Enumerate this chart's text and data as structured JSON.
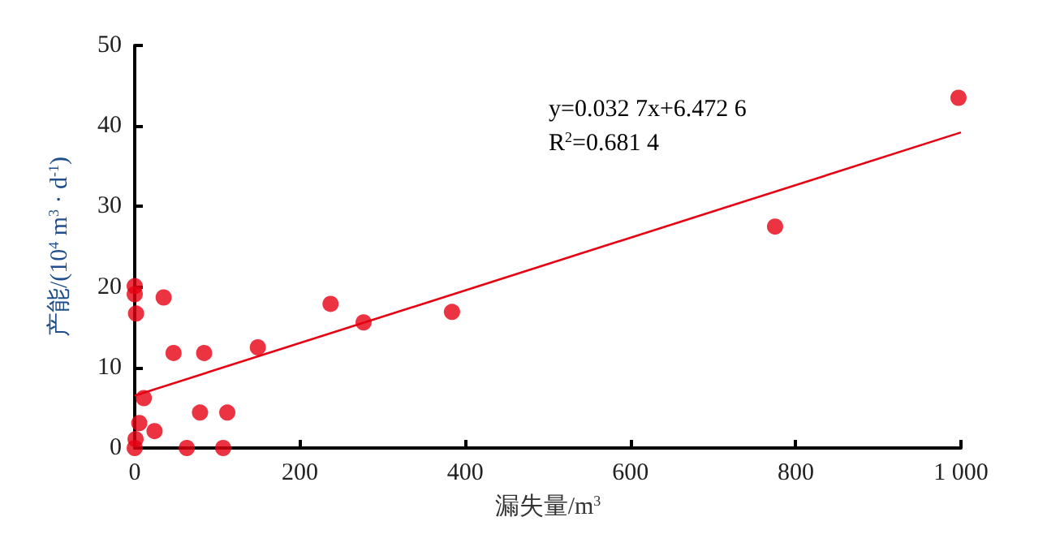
{
  "chart_data": {
    "type": "scatter",
    "xlabel": "漏失量/m$^{3}$",
    "ylabel": "产能/(10$^{4}$ m$^{3}$ · d$^{-1}$)",
    "xlim": [
      0,
      1000
    ],
    "ylim": [
      0,
      50
    ],
    "xticks": [
      0,
      200,
      400,
      600,
      800,
      {
        "value": 1000,
        "label": "1 000"
      }
    ],
    "yticks": [
      0,
      10,
      20,
      30,
      40,
      50
    ],
    "grid": false,
    "marker": "circle",
    "annotations": [
      "y=0.032 7x+6.472 6",
      "R$^{2}$=0.681 4"
    ],
    "series": [
      {
        "color": "#e60012",
        "x": [
          0,
          0,
          1.6,
          35,
          47,
          84,
          149,
          237,
          277,
          384,
          775,
          997,
          11,
          5.5,
          24,
          79,
          112,
          63,
          107,
          1,
          0
        ],
        "values": [
          20.1,
          19.1,
          16.7,
          18.7,
          11.8,
          11.8,
          12.5,
          17.9,
          15.6,
          16.9,
          27.5,
          43.5,
          6.2,
          3.1,
          2.1,
          4.4,
          4.4,
          0,
          0,
          1.1,
          0
        ]
      },
      {
        "type": "line",
        "color": "#e60012",
        "marker": "none",
        "line_style": "solid",
        "x": [
          0,
          1000
        ],
        "values": [
          6.5,
          39.2
        ]
      }
    ]
  }
}
